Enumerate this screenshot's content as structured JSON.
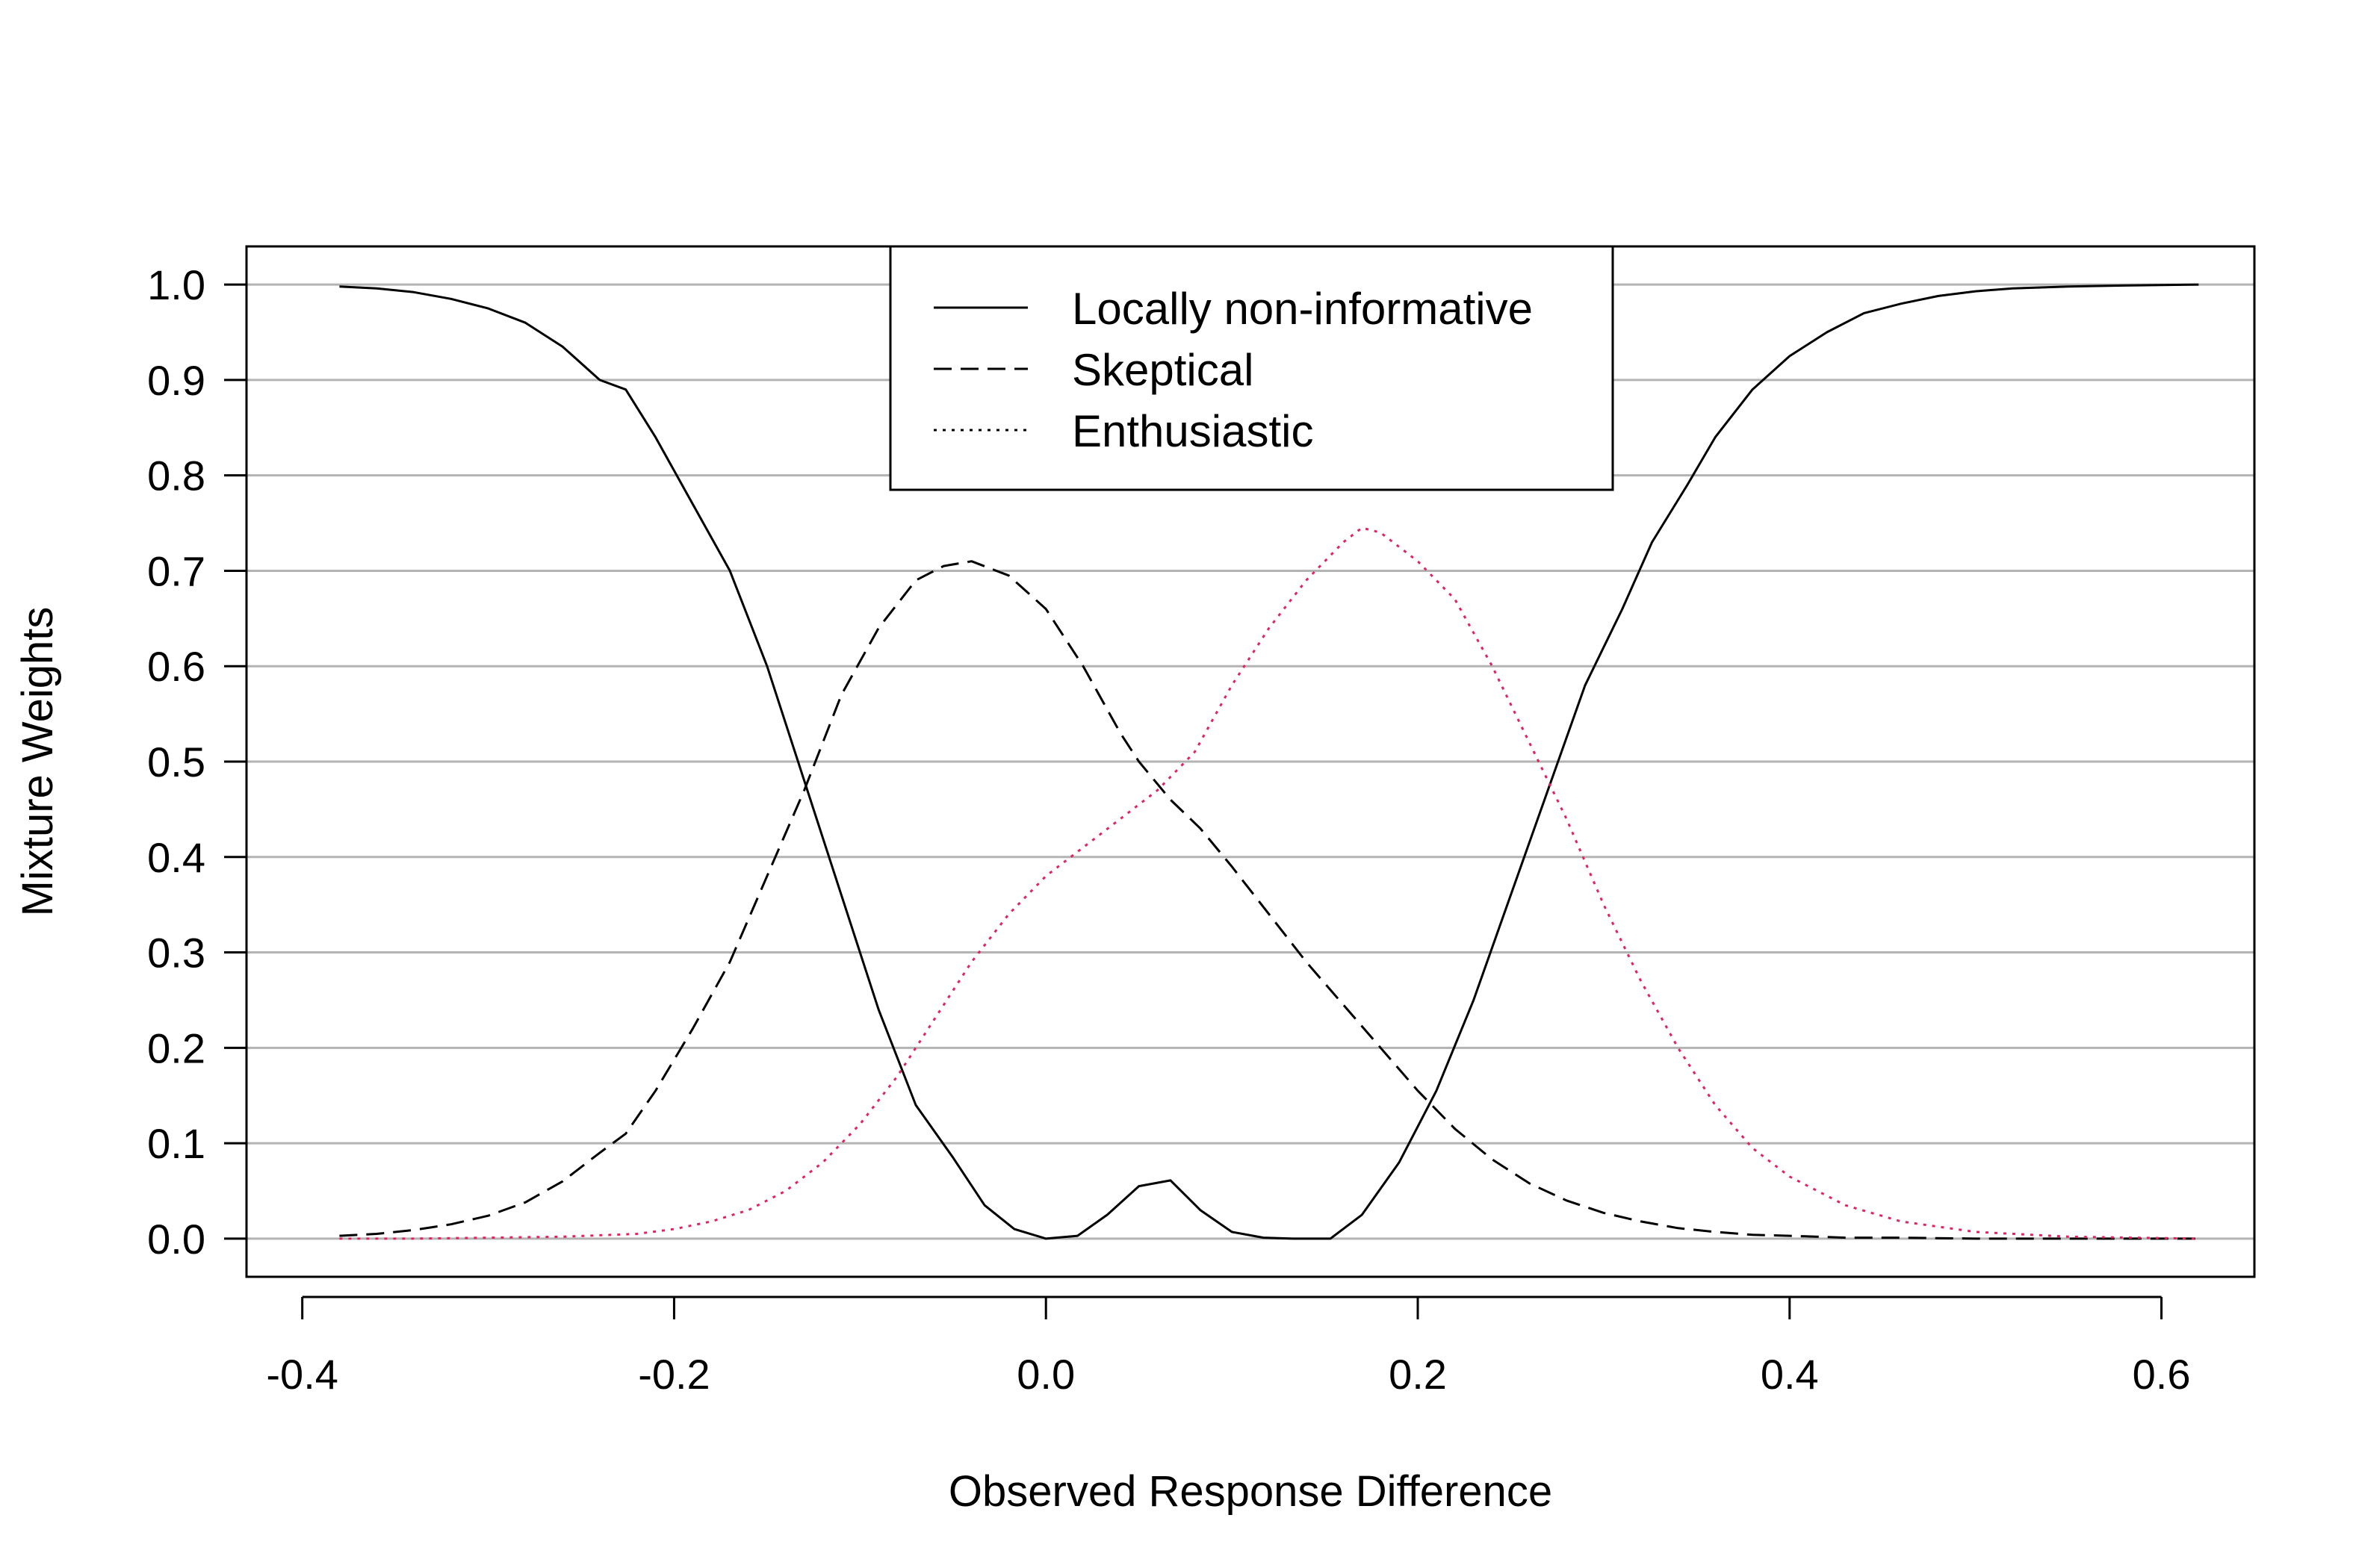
{
  "chart_data": {
    "type": "line",
    "title": "",
    "xlabel": "Observed Response Difference",
    "ylabel": "Mixture Weights",
    "xlim": [
      -0.43,
      0.65
    ],
    "ylim": [
      -0.04,
      1.04
    ],
    "xticks": [
      -0.4,
      -0.2,
      0.0,
      0.2,
      0.4,
      0.6
    ],
    "xtick_labels": [
      "-0.4",
      "-0.2",
      "0.0",
      "0.2",
      "0.4",
      "0.6"
    ],
    "yticks": [
      0.0,
      0.1,
      0.2,
      0.3,
      0.4,
      0.5,
      0.6,
      0.7,
      0.8,
      0.9,
      1.0
    ],
    "ytick_labels": [
      "0.0",
      "0.1",
      "0.2",
      "0.3",
      "0.4",
      "0.5",
      "0.6",
      "0.7",
      "0.8",
      "0.9",
      "1.0"
    ],
    "grid": "horizontal",
    "legend_position": "top-center",
    "series": [
      {
        "name": "Locally non-informative",
        "style": "solid",
        "color": "#000000",
        "x": [
          -0.38,
          -0.36,
          -0.34,
          -0.32,
          -0.3,
          -0.28,
          -0.26,
          -0.24,
          -0.226,
          -0.21,
          -0.19,
          -0.17,
          -0.15,
          -0.13,
          -0.11,
          -0.09,
          -0.07,
          -0.05,
          -0.033,
          -0.017,
          0.0,
          0.017,
          0.033,
          0.05,
          0.067,
          0.083,
          0.1,
          0.117,
          0.133,
          0.153,
          0.17,
          0.19,
          0.21,
          0.23,
          0.25,
          0.27,
          0.29,
          0.31,
          0.326,
          0.345,
          0.36,
          0.38,
          0.4,
          0.42,
          0.44,
          0.46,
          0.48,
          0.5,
          0.52,
          0.55,
          0.58,
          0.62
        ],
        "y": [
          0.998,
          0.996,
          0.992,
          0.985,
          0.975,
          0.96,
          0.935,
          0.9,
          0.89,
          0.84,
          0.77,
          0.7,
          0.6,
          0.48,
          0.36,
          0.24,
          0.14,
          0.085,
          0.035,
          0.01,
          0.0,
          0.003,
          0.025,
          0.055,
          0.061,
          0.03,
          0.007,
          0.001,
          0.0,
          0.0,
          0.025,
          0.08,
          0.155,
          0.25,
          0.36,
          0.47,
          0.58,
          0.66,
          0.73,
          0.79,
          0.84,
          0.89,
          0.925,
          0.95,
          0.97,
          0.98,
          0.988,
          0.993,
          0.996,
          0.998,
          0.999,
          1.0
        ]
      },
      {
        "name": "Skeptical",
        "style": "dashed",
        "color": "#000000",
        "x": [
          -0.38,
          -0.36,
          -0.34,
          -0.32,
          -0.3,
          -0.28,
          -0.26,
          -0.24,
          -0.226,
          -0.21,
          -0.19,
          -0.17,
          -0.15,
          -0.13,
          -0.11,
          -0.09,
          -0.07,
          -0.055,
          -0.04,
          -0.02,
          0.0,
          0.02,
          0.04,
          0.05,
          0.067,
          0.083,
          0.1,
          0.12,
          0.14,
          0.16,
          0.18,
          0.2,
          0.22,
          0.24,
          0.26,
          0.28,
          0.3,
          0.32,
          0.34,
          0.36,
          0.38,
          0.4,
          0.43,
          0.46,
          0.5,
          0.55,
          0.62
        ],
        "y": [
          0.003,
          0.005,
          0.009,
          0.015,
          0.024,
          0.038,
          0.06,
          0.09,
          0.11,
          0.155,
          0.22,
          0.29,
          0.38,
          0.47,
          0.57,
          0.64,
          0.69,
          0.705,
          0.71,
          0.695,
          0.66,
          0.6,
          0.53,
          0.5,
          0.46,
          0.43,
          0.39,
          0.34,
          0.29,
          0.245,
          0.2,
          0.155,
          0.115,
          0.083,
          0.058,
          0.04,
          0.027,
          0.018,
          0.011,
          0.007,
          0.004,
          0.003,
          0.001,
          0.001,
          0.0,
          0.0,
          0.0
        ]
      },
      {
        "name": "Enthusiastic",
        "style": "dotted",
        "color": "#e0245e",
        "x": [
          -0.38,
          -0.34,
          -0.3,
          -0.26,
          -0.22,
          -0.2,
          -0.18,
          -0.16,
          -0.14,
          -0.12,
          -0.1,
          -0.08,
          -0.06,
          -0.04,
          -0.02,
          0.0,
          0.02,
          0.04,
          0.06,
          0.08,
          0.1,
          0.12,
          0.14,
          0.16,
          0.17,
          0.18,
          0.2,
          0.22,
          0.24,
          0.26,
          0.28,
          0.3,
          0.32,
          0.34,
          0.36,
          0.38,
          0.4,
          0.43,
          0.46,
          0.5,
          0.55,
          0.62
        ],
        "y": [
          0.0,
          0.0,
          0.001,
          0.002,
          0.005,
          0.01,
          0.018,
          0.03,
          0.05,
          0.08,
          0.12,
          0.17,
          0.23,
          0.29,
          0.34,
          0.38,
          0.41,
          0.44,
          0.47,
          0.51,
          0.58,
          0.64,
          0.69,
          0.73,
          0.745,
          0.74,
          0.71,
          0.67,
          0.6,
          0.52,
          0.44,
          0.35,
          0.27,
          0.2,
          0.14,
          0.095,
          0.065,
          0.035,
          0.018,
          0.007,
          0.002,
          0.0
        ]
      }
    ]
  }
}
